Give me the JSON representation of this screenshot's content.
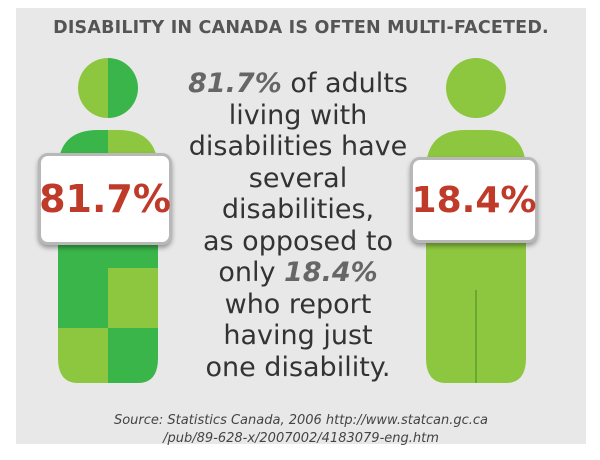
{
  "title": "DISABILITY IN CANADA IS OFTEN MULTI-FACETED.",
  "left_badge": "81.7%",
  "right_badge": "18.4%",
  "text": {
    "l1_em": "81.7%",
    "l1_rest": " of adults",
    "l2": "living with",
    "l3": "disabilities have",
    "l4": "several",
    "l5": "disabilities,",
    "l6": "as opposed to",
    "l7_pre": "only ",
    "l7_em": "18.4%",
    "l8": "who report",
    "l9": "having just",
    "l10": "one disability."
  },
  "source": {
    "line1": "Source: Statistics Canada, 2006 http://www.statcan.gc.ca",
    "line2": "/pub/89-628-x/2007002/4183079-eng.htm"
  },
  "colors": {
    "background": "#e8e8e8",
    "green_light": "#8dc63f",
    "green_dark": "#3ab54a",
    "badge_text": "#bf3a28"
  },
  "icons": {
    "left_figure": "person-figure-multi-segment",
    "right_figure": "person-figure-single"
  }
}
